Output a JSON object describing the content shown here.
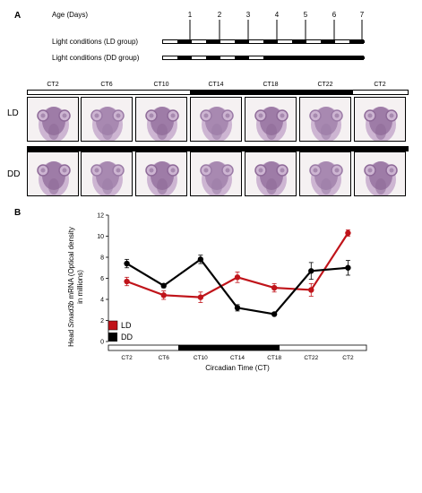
{
  "panel_a": {
    "letter": "A",
    "age_label": "Age (Days)",
    "days": [
      "1",
      "2",
      "3",
      "4",
      "5",
      "6",
      "7"
    ],
    "ld_bar_label": "Light conditions (LD group)",
    "dd_bar_label": "Light conditions (DD group)",
    "column_labels": [
      "CT2",
      "CT6",
      "CT10",
      "CT14",
      "CT18",
      "CT22",
      "CT2"
    ],
    "row_labels": [
      "LD",
      "DD"
    ]
  },
  "panel_b": {
    "letter": "B"
  },
  "chart_data": {
    "type": "line",
    "categories": [
      "CT2",
      "CT6",
      "CT10",
      "CT14",
      "CT18",
      "CT22",
      "CT2"
    ],
    "series": [
      {
        "name": "LD",
        "color": "#c0141a",
        "values": [
          5.7,
          4.4,
          4.2,
          6.1,
          5.1,
          4.9,
          10.3
        ],
        "errors": [
          0.4,
          0.4,
          0.5,
          0.5,
          0.4,
          0.6,
          0.3
        ]
      },
      {
        "name": "DD",
        "color": "#000000",
        "values": [
          7.4,
          5.3,
          7.8,
          3.2,
          2.6,
          6.7,
          7.0
        ],
        "errors": [
          0.4,
          0.2,
          0.4,
          0.3,
          0.1,
          0.8,
          0.7
        ]
      }
    ],
    "xlabel": "Circadian Time (CT)",
    "ylabel_prefix": "Head ",
    "ylabel_italic": "Smad3b",
    "ylabel_suffix": " mRNA (Optical density",
    "ylabel_line2": "in millions)",
    "ylim": [
      0,
      12
    ],
    "yticks": [
      0,
      2,
      4,
      6,
      8,
      10,
      12
    ],
    "legend_placement": "bottom-left",
    "light_bar": "dark from CT14 to CT22"
  }
}
